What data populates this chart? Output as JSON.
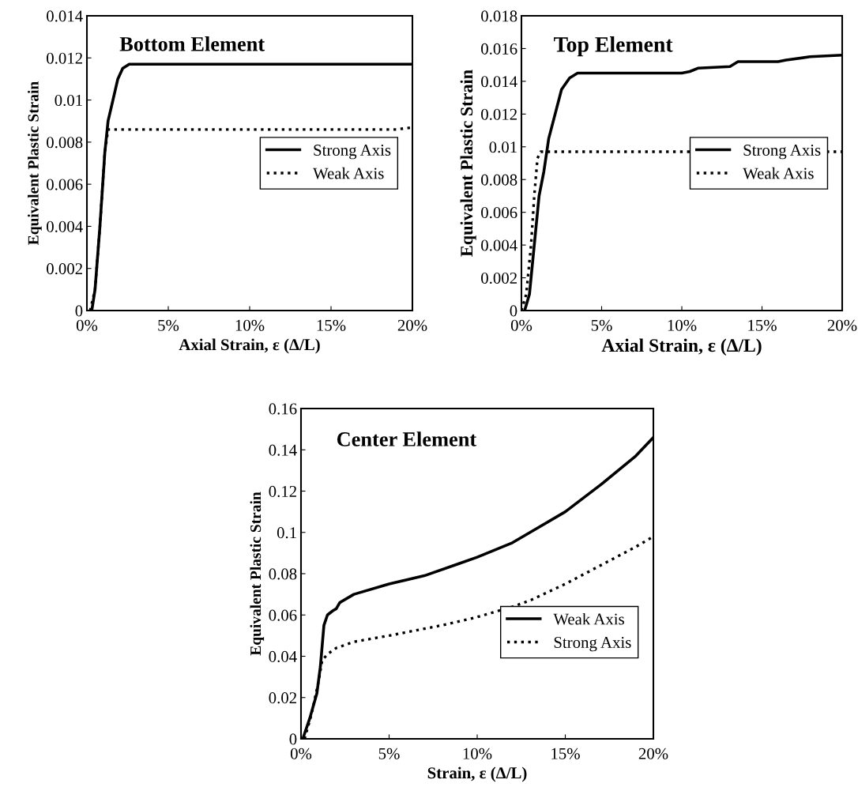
{
  "chart_data": [
    {
      "type": "line",
      "title": "Bottom Element",
      "xlabel": "Axial Strain, ε (Δ/L)",
      "ylabel": "Equivalent Plastic Strain",
      "xlim": [
        0,
        0.2
      ],
      "ylim": [
        0,
        0.014
      ],
      "xticks": [
        {
          "value": 0,
          "label": "0%"
        },
        {
          "value": 0.05,
          "label": "5%"
        },
        {
          "value": 0.1,
          "label": "10%"
        },
        {
          "value": 0.15,
          "label": "15%"
        },
        {
          "value": 0.2,
          "label": "20%"
        }
      ],
      "yticks": [
        0,
        0.002,
        0.004,
        0.006,
        0.008,
        0.01,
        0.012,
        0.014
      ],
      "grid": false,
      "legend": "right",
      "series": [
        {
          "name": "Strong Axis",
          "color": "#000000",
          "line_style": "solid",
          "x": [
            0.003,
            0.005,
            0.008,
            0.011,
            0.013,
            0.016,
            0.019,
            0.022,
            0.026,
            0.2
          ],
          "values": [
            0,
            0.001,
            0.004,
            0.0075,
            0.009,
            0.01,
            0.011,
            0.0115,
            0.0117,
            0.0117
          ]
        },
        {
          "name": "Weak Axis",
          "color": "#000000",
          "line_style": "dotted",
          "x": [
            0.002,
            0.005,
            0.008,
            0.011,
            0.013,
            0.19,
            0.2
          ],
          "values": [
            0,
            0.001,
            0.004,
            0.0075,
            0.0086,
            0.0086,
            0.0087
          ]
        }
      ]
    },
    {
      "type": "line",
      "title": "Top Element",
      "xlabel": "Axial Strain, ε (Δ/L)",
      "ylabel": "Equivalent Plastic Strain",
      "xlim": [
        0,
        0.2
      ],
      "ylim": [
        0,
        0.018
      ],
      "xticks": [
        {
          "value": 0,
          "label": "0%"
        },
        {
          "value": 0.05,
          "label": "5%"
        },
        {
          "value": 0.1,
          "label": "10%"
        },
        {
          "value": 0.15,
          "label": "15%"
        },
        {
          "value": 0.2,
          "label": "20%"
        }
      ],
      "yticks": [
        0,
        0.002,
        0.004,
        0.006,
        0.008,
        0.01,
        0.012,
        0.014,
        0.016,
        0.018
      ],
      "grid": false,
      "legend": "right",
      "series": [
        {
          "name": "Strong Axis",
          "color": "#000000",
          "line_style": "solid",
          "x": [
            0.002,
            0.005,
            0.008,
            0.011,
            0.014,
            0.017,
            0.021,
            0.025,
            0.03,
            0.035,
            0.1,
            0.105,
            0.11,
            0.13,
            0.135,
            0.16,
            0.165,
            0.18,
            0.2
          ],
          "values": [
            0,
            0.001,
            0.004,
            0.007,
            0.0085,
            0.0105,
            0.012,
            0.0135,
            0.0142,
            0.0145,
            0.0145,
            0.0146,
            0.0148,
            0.0149,
            0.0152,
            0.0152,
            0.0153,
            0.0155,
            0.0156
          ]
        },
        {
          "name": "Weak Axis",
          "color": "#000000",
          "line_style": "dotted",
          "x": [
            0,
            0.003,
            0.006,
            0.008,
            0.01,
            0.012,
            0.2
          ],
          "values": [
            0,
            0.001,
            0.004,
            0.007,
            0.0093,
            0.0097,
            0.0097
          ]
        }
      ]
    },
    {
      "type": "line",
      "title": "Center Element",
      "xlabel": "Strain, ε (Δ/L)",
      "ylabel": "Equivalent Plastic Strain",
      "xlim": [
        0,
        0.2
      ],
      "ylim": [
        0,
        0.16
      ],
      "xticks": [
        {
          "value": 0,
          "label": "0%"
        },
        {
          "value": 0.05,
          "label": "5%"
        },
        {
          "value": 0.1,
          "label": "10%"
        },
        {
          "value": 0.15,
          "label": "15%"
        },
        {
          "value": 0.2,
          "label": "20%"
        }
      ],
      "yticks": [
        0,
        0.02,
        0.04,
        0.06,
        0.08,
        0.1,
        0.12,
        0.14,
        0.16
      ],
      "grid": false,
      "legend": "bottom right",
      "series": [
        {
          "name": "Weak Axis",
          "color": "#000000",
          "line_style": "solid",
          "x": [
            0.001,
            0.005,
            0.009,
            0.011,
            0.013,
            0.015,
            0.018,
            0.02,
            0.022,
            0.03,
            0.05,
            0.07,
            0.09,
            0.1,
            0.12,
            0.13,
            0.15,
            0.17,
            0.19,
            0.2
          ],
          "values": [
            0,
            0.01,
            0.022,
            0.035,
            0.055,
            0.06,
            0.062,
            0.063,
            0.066,
            0.07,
            0.075,
            0.079,
            0.085,
            0.088,
            0.095,
            0.1,
            0.11,
            0.123,
            0.137,
            0.146
          ]
        },
        {
          "name": "Strong Axis",
          "color": "#000000",
          "line_style": "dotted",
          "x": [
            0.002,
            0.006,
            0.01,
            0.012,
            0.015,
            0.02,
            0.03,
            0.05,
            0.08,
            0.1,
            0.12,
            0.13,
            0.15,
            0.17,
            0.19,
            0.2
          ],
          "values": [
            0,
            0.012,
            0.028,
            0.038,
            0.041,
            0.044,
            0.047,
            0.05,
            0.055,
            0.059,
            0.064,
            0.067,
            0.075,
            0.084,
            0.093,
            0.098
          ]
        }
      ]
    }
  ]
}
